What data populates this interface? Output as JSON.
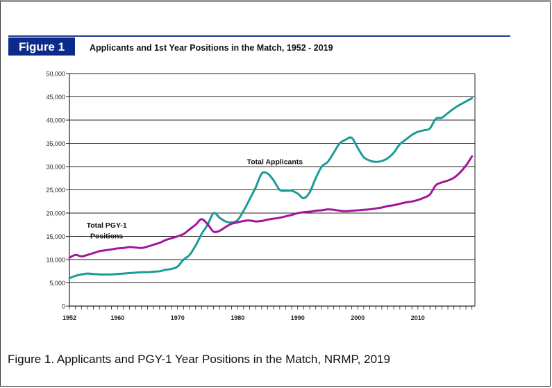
{
  "figure": {
    "badge": "Figure 1",
    "caption": "Figure 1. Applicants and PGY-1 Year Positions in the Match, NRMP, 2019"
  },
  "colors": {
    "badge_bg": "#0b2a8a",
    "header_rule": "#1f3a93",
    "applicants": "#1a9c96",
    "positions": "#a0169c"
  },
  "chart_data": {
    "type": "line",
    "title": "Applicants and 1st Year Positions in the Match, 1952 - 2019",
    "xlabel": "",
    "ylabel": "",
    "xlim": [
      1952,
      2019
    ],
    "ylim": [
      0,
      50000
    ],
    "x_ticks": [
      1952,
      1960,
      1970,
      1980,
      1990,
      2000,
      2010
    ],
    "y_ticks": [
      "0",
      "5,000",
      "10,000",
      "15,000",
      "20,000",
      "25,000",
      "30,000",
      "35,000",
      "40,000",
      "45,000",
      "50,000"
    ],
    "grid": true,
    "series": [
      {
        "name": "Total Applicants",
        "label": "Total Applicants",
        "color": "#1a9c96",
        "points": [
          [
            1952,
            6000
          ],
          [
            1953,
            6500
          ],
          [
            1954,
            6800
          ],
          [
            1955,
            7000
          ],
          [
            1956,
            6900
          ],
          [
            1957,
            6800
          ],
          [
            1958,
            6800
          ],
          [
            1959,
            6800
          ],
          [
            1960,
            6900
          ],
          [
            1961,
            7000
          ],
          [
            1962,
            7100
          ],
          [
            1963,
            7200
          ],
          [
            1964,
            7300
          ],
          [
            1965,
            7300
          ],
          [
            1966,
            7400
          ],
          [
            1967,
            7500
          ],
          [
            1968,
            7800
          ],
          [
            1969,
            8000
          ],
          [
            1970,
            8500
          ],
          [
            1971,
            10000
          ],
          [
            1972,
            11000
          ],
          [
            1973,
            13000
          ],
          [
            1974,
            15500
          ],
          [
            1975,
            17500
          ],
          [
            1976,
            20000
          ],
          [
            1977,
            19000
          ],
          [
            1978,
            18200
          ],
          [
            1979,
            18000
          ],
          [
            1980,
            18500
          ],
          [
            1981,
            20500
          ],
          [
            1982,
            23000
          ],
          [
            1983,
            25500
          ],
          [
            1984,
            28500
          ],
          [
            1985,
            28500
          ],
          [
            1986,
            27000
          ],
          [
            1987,
            25000
          ],
          [
            1988,
            24800
          ],
          [
            1989,
            24800
          ],
          [
            1990,
            24200
          ],
          [
            1991,
            23200
          ],
          [
            1992,
            24500
          ],
          [
            1993,
            27500
          ],
          [
            1994,
            30000
          ],
          [
            1995,
            31000
          ],
          [
            1996,
            33000
          ],
          [
            1997,
            35000
          ],
          [
            1998,
            35800
          ],
          [
            1999,
            36200
          ],
          [
            2000,
            34000
          ],
          [
            2001,
            32000
          ],
          [
            2002,
            31300
          ],
          [
            2003,
            31000
          ],
          [
            2004,
            31200
          ],
          [
            2005,
            31800
          ],
          [
            2006,
            33000
          ],
          [
            2007,
            34800
          ],
          [
            2008,
            35800
          ],
          [
            2009,
            36800
          ],
          [
            2010,
            37500
          ],
          [
            2011,
            37800
          ],
          [
            2012,
            38200
          ],
          [
            2013,
            40300
          ],
          [
            2014,
            40500
          ],
          [
            2015,
            41500
          ],
          [
            2016,
            42500
          ],
          [
            2017,
            43300
          ],
          [
            2018,
            44000
          ],
          [
            2019,
            44700
          ]
        ]
      },
      {
        "name": "Total PGY-1 Positions",
        "label": "Total PGY-1 Positions",
        "label_lines": [
          "Total PGY-1",
          "Positions"
        ],
        "color": "#a0169c",
        "points": [
          [
            1952,
            10400
          ],
          [
            1953,
            11000
          ],
          [
            1954,
            10700
          ],
          [
            1955,
            11000
          ],
          [
            1956,
            11400
          ],
          [
            1957,
            11800
          ],
          [
            1958,
            12000
          ],
          [
            1959,
            12200
          ],
          [
            1960,
            12400
          ],
          [
            1961,
            12500
          ],
          [
            1962,
            12700
          ],
          [
            1963,
            12600
          ],
          [
            1964,
            12500
          ],
          [
            1965,
            12800
          ],
          [
            1966,
            13200
          ],
          [
            1967,
            13600
          ],
          [
            1968,
            14200
          ],
          [
            1969,
            14600
          ],
          [
            1970,
            15000
          ],
          [
            1971,
            15500
          ],
          [
            1972,
            16500
          ],
          [
            1973,
            17500
          ],
          [
            1974,
            18700
          ],
          [
            1975,
            17600
          ],
          [
            1976,
            16000
          ],
          [
            1977,
            16200
          ],
          [
            1978,
            17000
          ],
          [
            1979,
            17700
          ],
          [
            1980,
            18000
          ],
          [
            1981,
            18300
          ],
          [
            1982,
            18400
          ],
          [
            1983,
            18200
          ],
          [
            1984,
            18300
          ],
          [
            1985,
            18600
          ],
          [
            1986,
            18800
          ],
          [
            1987,
            19000
          ],
          [
            1988,
            19300
          ],
          [
            1989,
            19600
          ],
          [
            1990,
            20000
          ],
          [
            1991,
            20200
          ],
          [
            1992,
            20300
          ],
          [
            1993,
            20500
          ],
          [
            1994,
            20600
          ],
          [
            1995,
            20800
          ],
          [
            1996,
            20700
          ],
          [
            1997,
            20500
          ],
          [
            1998,
            20400
          ],
          [
            1999,
            20500
          ],
          [
            2000,
            20600
          ],
          [
            2001,
            20700
          ],
          [
            2002,
            20800
          ],
          [
            2003,
            21000
          ],
          [
            2004,
            21200
          ],
          [
            2005,
            21500
          ],
          [
            2006,
            21700
          ],
          [
            2007,
            22000
          ],
          [
            2008,
            22300
          ],
          [
            2009,
            22500
          ],
          [
            2010,
            22800
          ],
          [
            2011,
            23300
          ],
          [
            2012,
            24000
          ],
          [
            2013,
            26000
          ],
          [
            2014,
            26600
          ],
          [
            2015,
            27000
          ],
          [
            2016,
            27600
          ],
          [
            2017,
            28700
          ],
          [
            2018,
            30200
          ],
          [
            2019,
            32200
          ]
        ]
      }
    ]
  }
}
